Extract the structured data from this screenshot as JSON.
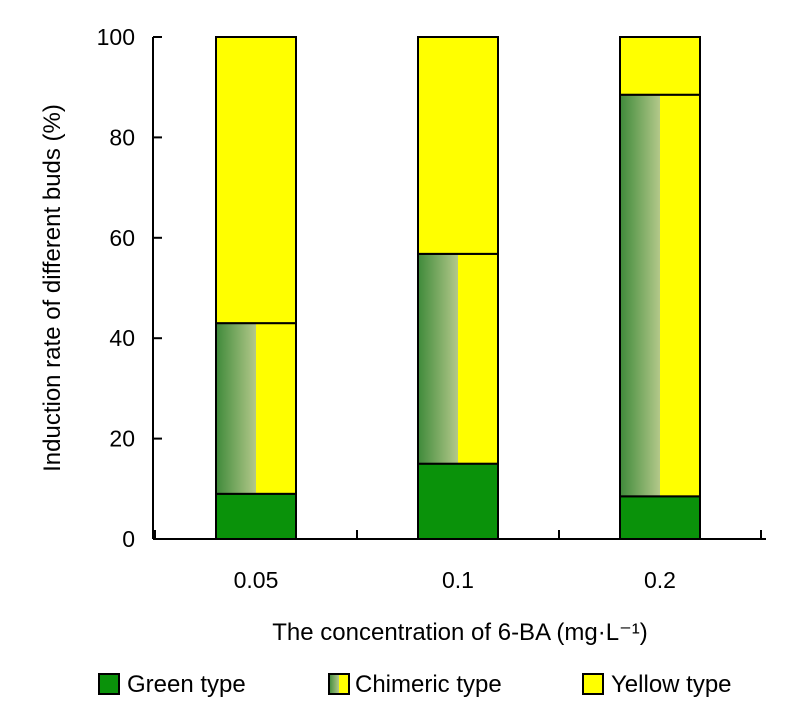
{
  "chart_data": {
    "type": "bar",
    "stacked": true,
    "title": "",
    "xlabel": "The  concentration of 6-BA (mg·L⁻¹)",
    "ylabel": "Induction rate of different buds (%)",
    "categories": [
      "0.05",
      "0.1",
      "0.2"
    ],
    "ylim": [
      0,
      100
    ],
    "yticks": [
      0,
      20,
      40,
      60,
      80,
      100
    ],
    "ytick_labels": [
      "0",
      "20",
      "40",
      "60",
      "80",
      "100"
    ],
    "grid": false,
    "legend_position": "bottom",
    "series": [
      {
        "name": "Green type",
        "values": [
          9,
          15,
          8.5
        ],
        "color": "#0a920a"
      },
      {
        "name": "Chimeric type",
        "values": [
          34,
          41.8,
          80
        ],
        "color": "#66994a",
        "pattern": "half green gradient / half yellow"
      },
      {
        "name": "Yellow type",
        "values": [
          57,
          43.2,
          11.5
        ],
        "color": "#ffff00"
      }
    ]
  }
}
